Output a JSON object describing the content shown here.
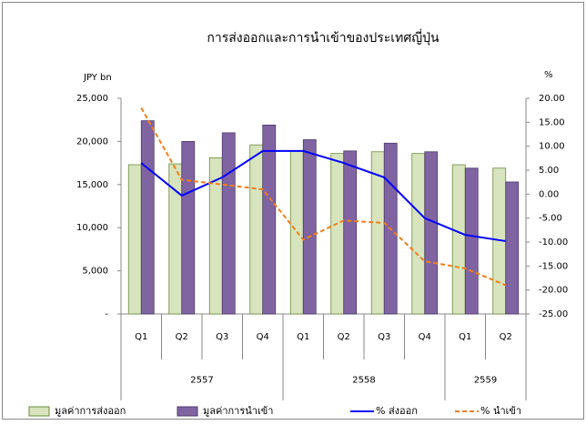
{
  "chart_data": {
    "type": "bar",
    "title": "การส่งออกและการนำเข้าของประเทศญี่ปุ่น",
    "y_label": "JPY bn",
    "y2_label": "%",
    "categories": [
      "Q1",
      "Q2",
      "Q3",
      "Q4",
      "Q1",
      "Q2",
      "Q3",
      "Q4",
      "Q1",
      "Q2"
    ],
    "groups": [
      {
        "label": "2557",
        "count": 4
      },
      {
        "label": "2558",
        "count": 4
      },
      {
        "label": "2559",
        "count": 2
      }
    ],
    "ylim": [
      0,
      25000
    ],
    "yticks": [
      {
        "value": 0,
        "label": "-"
      },
      {
        "value": 5000,
        "label": "5,000"
      },
      {
        "value": 10000,
        "label": "10,000"
      },
      {
        "value": 15000,
        "label": "15,000"
      },
      {
        "value": 20000,
        "label": "20,000"
      },
      {
        "value": 25000,
        "label": "25,000"
      }
    ],
    "y2lim": [
      -25,
      20
    ],
    "y2ticks": [
      {
        "value": -25,
        "label": "-25.00"
      },
      {
        "value": -20,
        "label": "-20.00"
      },
      {
        "value": -15,
        "label": "-15.00"
      },
      {
        "value": -10,
        "label": "-10.00"
      },
      {
        "value": -5,
        "label": "-5.00"
      },
      {
        "value": 0,
        "label": "0.00"
      },
      {
        "value": 5,
        "label": "5.00"
      },
      {
        "value": 10,
        "label": "10.00"
      },
      {
        "value": 15,
        "label": "15.00"
      },
      {
        "value": 20,
        "label": "20.00"
      }
    ],
    "series": [
      {
        "name": "มูลค่าการส่งออก",
        "kind": "bar",
        "color": "#d7e4bd",
        "values": [
          17300,
          17400,
          18100,
          19600,
          18900,
          18600,
          18800,
          18600,
          17300,
          16900
        ]
      },
      {
        "name": "มูลค่าการนำเข้า",
        "kind": "bar",
        "color": "#8064a2",
        "values": [
          22400,
          20000,
          21000,
          21900,
          20200,
          18900,
          19800,
          18800,
          16900,
          15300
        ]
      },
      {
        "name": "% ส่งออก",
        "kind": "line",
        "axis": "y2",
        "color": "#0000ff",
        "values": [
          6.5,
          -0.3,
          3.5,
          9,
          9,
          6.5,
          3.5,
          -5,
          -8.5,
          -9.8
        ]
      },
      {
        "name": "% นำเข้า",
        "kind": "line",
        "axis": "y2",
        "dashed": true,
        "color": "#f07f1a",
        "values": [
          18,
          3,
          2,
          1,
          -9.5,
          -5.5,
          -6,
          -14,
          -15.5,
          -19
        ]
      }
    ]
  }
}
